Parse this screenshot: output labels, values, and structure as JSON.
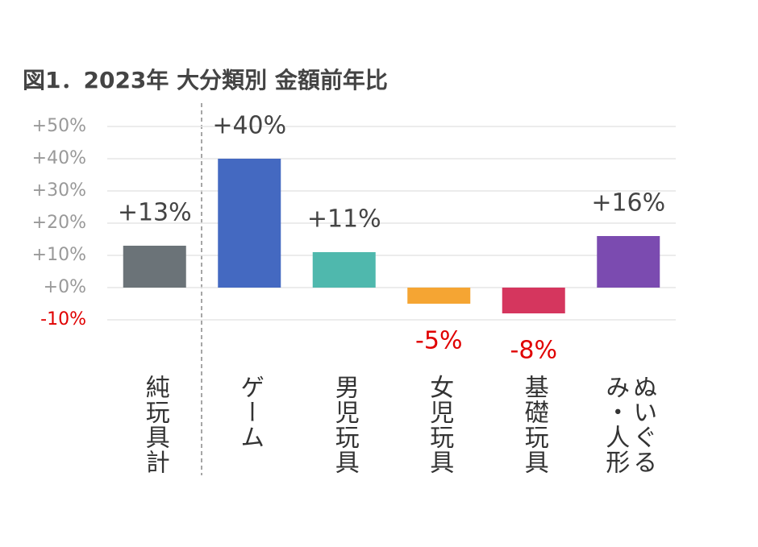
{
  "chart_data": {
    "type": "bar",
    "title": "図1．2023年 大分類別 金額前年比",
    "categories": [
      "純玩具計",
      "ゲーム",
      "男児玩具",
      "女児玩具",
      "基礎玩具",
      "ぬいぐるみ・人形"
    ],
    "values": [
      13,
      40,
      11,
      -5,
      -8,
      16
    ],
    "value_labels": [
      "+13%",
      "+40%",
      "+11%",
      "-5%",
      "-8%",
      "+16%"
    ],
    "colors": [
      "#6b7378",
      "#4469c1",
      "#4fb8ad",
      "#f5a533",
      "#d5365e",
      "#7b4bb0"
    ],
    "ylim": [
      -10,
      50
    ],
    "yticks": [
      {
        "value": 50,
        "label": "+50%"
      },
      {
        "value": 40,
        "label": "+40%"
      },
      {
        "value": 30,
        "label": "+30%"
      },
      {
        "value": 20,
        "label": "+20%"
      },
      {
        "value": 10,
        "label": "+10%"
      },
      {
        "value": 0,
        "label": "+0%"
      },
      {
        "value": -10,
        "label": "-10%"
      }
    ],
    "grid": true
  }
}
